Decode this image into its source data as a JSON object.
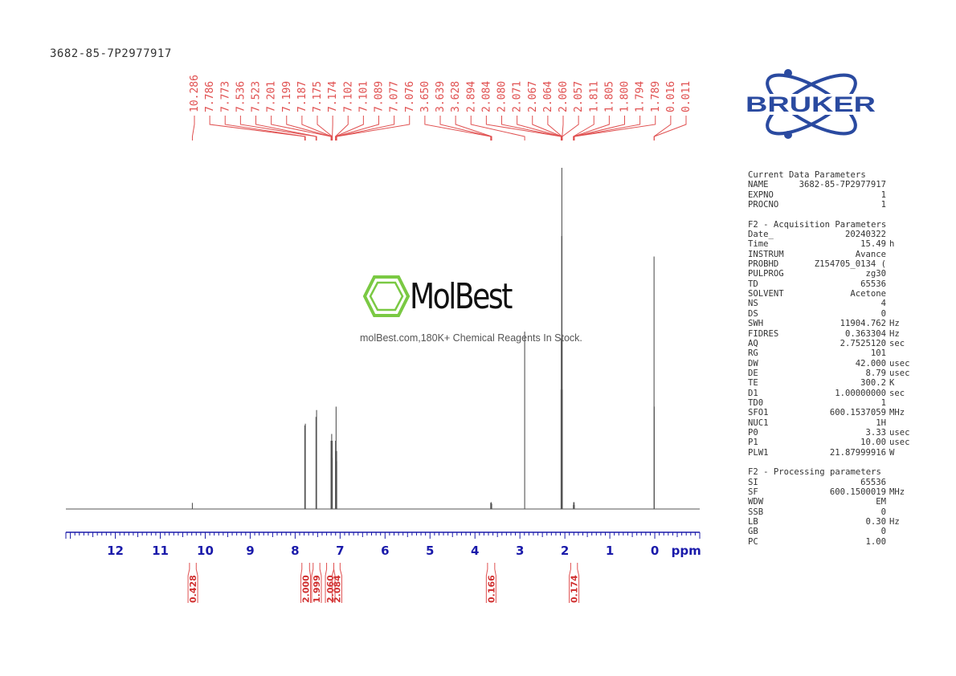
{
  "sample_id": "3682-85-7P2977917",
  "brand_logo": {
    "text": "BRUKER",
    "color": "#2a4aa0"
  },
  "watermark": {
    "name": "MolBest",
    "tagline": "molBest.com,180K+ Chemical Reagents In Stock.",
    "icon": "benzene-ring-icon",
    "color": "#7ac943"
  },
  "chart_data": {
    "type": "line",
    "title": "",
    "xlabel": "ppm",
    "ylabel": "",
    "x_reversed": true,
    "xlim": [
      13.1,
      -1.0
    ],
    "x_ticks": [
      12,
      11,
      10,
      9,
      8,
      7,
      6,
      5,
      4,
      3,
      2,
      1,
      0
    ],
    "grid": false,
    "colors": {
      "spectrum": "#555555",
      "annotation": "#e05050",
      "axis": "#1a1aaa"
    },
    "peaks": [
      {
        "ppm": 10.286,
        "height": 0.018
      },
      {
        "ppm": 7.786,
        "height": 0.245
      },
      {
        "ppm": 7.773,
        "height": 0.25
      },
      {
        "ppm": 7.536,
        "height": 0.27
      },
      {
        "ppm": 7.523,
        "height": 0.29
      },
      {
        "ppm": 7.201,
        "height": 0.2
      },
      {
        "ppm": 7.199,
        "height": 0.16
      },
      {
        "ppm": 7.187,
        "height": 0.22
      },
      {
        "ppm": 7.175,
        "height": 0.2
      },
      {
        "ppm": 7.174,
        "height": 0.15
      },
      {
        "ppm": 7.102,
        "height": 0.17
      },
      {
        "ppm": 7.101,
        "height": 0.2
      },
      {
        "ppm": 7.089,
        "height": 0.3
      },
      {
        "ppm": 7.077,
        "height": 0.17
      },
      {
        "ppm": 7.076,
        "height": 0.14
      },
      {
        "ppm": 3.65,
        "height": 0.018
      },
      {
        "ppm": 3.639,
        "height": 0.02
      },
      {
        "ppm": 3.628,
        "height": 0.016
      },
      {
        "ppm": 2.894,
        "height": 0.52
      },
      {
        "ppm": 2.084,
        "height": 0.35
      },
      {
        "ppm": 2.08,
        "height": 0.5
      },
      {
        "ppm": 2.071,
        "height": 0.8
      },
      {
        "ppm": 2.067,
        "height": 1.0
      },
      {
        "ppm": 2.064,
        "height": 0.8
      },
      {
        "ppm": 2.06,
        "height": 0.5
      },
      {
        "ppm": 2.057,
        "height": 0.35
      },
      {
        "ppm": 1.811,
        "height": 0.012
      },
      {
        "ppm": 1.805,
        "height": 0.02
      },
      {
        "ppm": 1.8,
        "height": 0.012
      },
      {
        "ppm": 1.794,
        "height": 0.02
      },
      {
        "ppm": 1.789,
        "height": 0.012
      },
      {
        "ppm": 0.016,
        "height": 0.74
      },
      {
        "ppm": 0.011,
        "height": 0.3
      }
    ],
    "integrals": [
      {
        "from": 10.35,
        "to": 10.2,
        "value": "0.428"
      },
      {
        "from": 7.85,
        "to": 7.68,
        "value": "2.000"
      },
      {
        "from": 7.6,
        "to": 7.45,
        "value": "1.999"
      },
      {
        "from": 7.3,
        "to": 7.14,
        "value": "2.060"
      },
      {
        "from": 7.14,
        "to": 7.0,
        "value": "2.084"
      },
      {
        "from": 3.72,
        "to": 3.56,
        "value": "0.166"
      },
      {
        "from": 1.87,
        "to": 1.72,
        "value": "0.174"
      }
    ]
  },
  "parameters": [
    {
      "type": "header",
      "text": "Current Data Parameters"
    },
    {
      "k": "NAME",
      "v": "3682-85-7P2977917",
      "u": ""
    },
    {
      "k": "EXPNO",
      "v": "1",
      "u": ""
    },
    {
      "k": "PROCNO",
      "v": "1",
      "u": ""
    },
    {
      "type": "gap"
    },
    {
      "type": "header",
      "text": "F2 - Acquisition Parameters"
    },
    {
      "k": "Date_",
      "v": "20240322",
      "u": ""
    },
    {
      "k": "Time",
      "v": "15.49",
      "u": "h"
    },
    {
      "k": "INSTRUM",
      "v": "Avance",
      "u": ""
    },
    {
      "k": "PROBHD",
      "v": "Z154705_0134 (",
      "u": ""
    },
    {
      "k": "PULPROG",
      "v": "zg30",
      "u": ""
    },
    {
      "k": "TD",
      "v": "65536",
      "u": ""
    },
    {
      "k": "SOLVENT",
      "v": "Acetone",
      "u": ""
    },
    {
      "k": "NS",
      "v": "4",
      "u": ""
    },
    {
      "k": "DS",
      "v": "0",
      "u": ""
    },
    {
      "k": "SWH",
      "v": "11904.762",
      "u": "Hz"
    },
    {
      "k": "FIDRES",
      "v": "0.363304",
      "u": "Hz"
    },
    {
      "k": "AQ",
      "v": "2.7525120",
      "u": "sec"
    },
    {
      "k": "RG",
      "v": "101",
      "u": ""
    },
    {
      "k": "DW",
      "v": "42.000",
      "u": "usec"
    },
    {
      "k": "DE",
      "v": "8.79",
      "u": "usec"
    },
    {
      "k": "TE",
      "v": "300.2",
      "u": "K"
    },
    {
      "k": "D1",
      "v": "1.00000000",
      "u": "sec"
    },
    {
      "k": "TD0",
      "v": "1",
      "u": ""
    },
    {
      "k": "SFO1",
      "v": "600.1537059",
      "u": "MHz"
    },
    {
      "k": "NUC1",
      "v": "1H",
      "u": ""
    },
    {
      "k": "P0",
      "v": "3.33",
      "u": "usec"
    },
    {
      "k": "P1",
      "v": "10.00",
      "u": "usec"
    },
    {
      "k": "PLW1",
      "v": "21.87999916",
      "u": "W"
    },
    {
      "type": "gap"
    },
    {
      "type": "header",
      "text": "F2 - Processing parameters"
    },
    {
      "k": "SI",
      "v": "65536",
      "u": ""
    },
    {
      "k": "SF",
      "v": "600.1500019",
      "u": "MHz"
    },
    {
      "k": "WDW",
      "v": "EM",
      "u": ""
    },
    {
      "k": "SSB",
      "v": "0",
      "u": ""
    },
    {
      "k": "LB",
      "v": "0.30",
      "u": "Hz"
    },
    {
      "k": "GB",
      "v": "0",
      "u": ""
    },
    {
      "k": "PC",
      "v": "1.00",
      "u": ""
    }
  ]
}
